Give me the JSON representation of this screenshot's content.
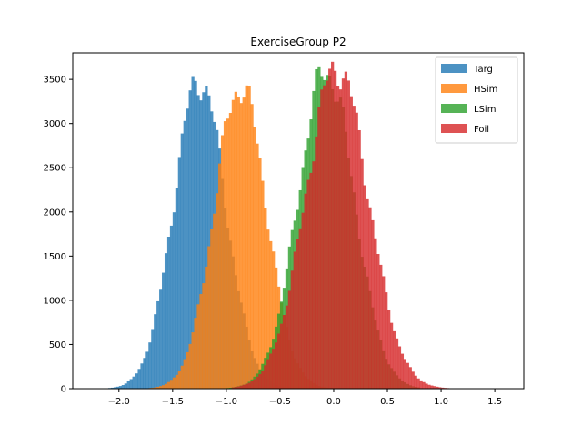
{
  "chart_data": {
    "type": "histogram",
    "title": "ExerciseGroup P2",
    "xlabel": "",
    "ylabel": "",
    "xlim": [
      -2.43,
      1.77
    ],
    "ylim": [
      0,
      3800
    ],
    "x_ticks": [
      -2.0,
      -1.5,
      -1.0,
      -0.5,
      0.0,
      0.5,
      1.0,
      1.5
    ],
    "x_tick_labels": [
      "−2.0",
      "−1.5",
      "−1.0",
      "−0.5",
      "0.0",
      "0.5",
      "1.0",
      "1.5"
    ],
    "y_ticks": [
      0,
      500,
      1000,
      1500,
      2000,
      2500,
      3000,
      3500
    ],
    "y_tick_labels": [
      "0",
      "500",
      "1000",
      "1500",
      "2000",
      "2500",
      "3000",
      "3500"
    ],
    "grid": false,
    "legend_position": "top-right",
    "bin_width": 0.025,
    "series": [
      {
        "name": "Targ",
        "color": "#1f77b4",
        "opacity": 0.8,
        "mean": -1.25,
        "sd": 0.24,
        "peak": 3500,
        "range": [
          -2.08,
          -0.28
        ]
      },
      {
        "name": "HSim",
        "color": "#ff7f0e",
        "opacity": 0.8,
        "mean": -0.87,
        "sd": 0.24,
        "peak": 3430,
        "range": [
          -1.72,
          0.02
        ]
      },
      {
        "name": "LSim",
        "color": "#2ca02c",
        "opacity": 0.8,
        "mean": -0.07,
        "sd": 0.26,
        "peak": 3600,
        "range": [
          -1.05,
          0.78
        ]
      },
      {
        "name": "Foil",
        "color": "#d62728",
        "opacity": 0.8,
        "mean": 0.03,
        "sd": 0.29,
        "peak": 3640,
        "range": [
          -0.95,
          1.3
        ]
      }
    ]
  }
}
